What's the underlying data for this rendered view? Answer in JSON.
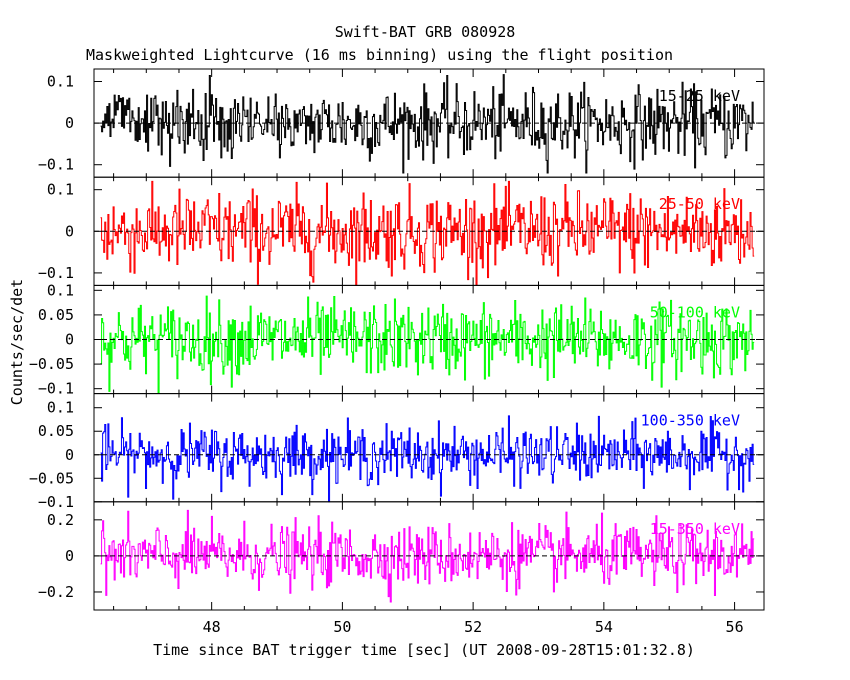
{
  "chart_data": {
    "type": "line",
    "title": "Swift-BAT GRB 080928",
    "subtitle": "Maskweighted Lightcurve (16 ms binning) using the flight position",
    "xlabel": "Time since BAT trigger time [sec] (UT 2008-09-28T15:01:32.8)",
    "ylabel": "Counts/sec/det",
    "xlim": [
      46.2,
      56.45
    ],
    "x_range_data": [
      46.3,
      56.3
    ],
    "bin_width_sec": 0.016,
    "xticks": [
      "48",
      "50",
      "52",
      "54",
      "56"
    ],
    "panels": [
      {
        "name": "15-25 keV",
        "color": "#000000",
        "ylim": [
          -0.13,
          0.13
        ],
        "yticks": [
          0.1,
          0,
          -0.1
        ],
        "ytick_labels": [
          "0.1",
          "0",
          "−0.1"
        ],
        "noise_sigma": 0.042,
        "envelope_range": [
          -0.12,
          0.13
        ]
      },
      {
        "name": "25-50 keV",
        "color": "#ff0000",
        "ylim": [
          -0.13,
          0.13
        ],
        "yticks": [
          0.1,
          0,
          -0.1
        ],
        "ytick_labels": [
          "0.1",
          "0",
          "−0.1"
        ],
        "noise_sigma": 0.048,
        "envelope_range": [
          -0.13,
          0.12
        ]
      },
      {
        "name": "50-100 keV",
        "color": "#00ff00",
        "ylim": [
          -0.11,
          0.11
        ],
        "yticks": [
          0.1,
          0.05,
          0,
          -0.05,
          -0.1
        ],
        "ytick_labels": [
          "0.1",
          "0.05",
          "0",
          "−0.05",
          "−0.1"
        ],
        "noise_sigma": 0.037,
        "envelope_range": [
          -0.11,
          0.11
        ]
      },
      {
        "name": "100-350 keV",
        "color": "#0000ff",
        "ylim": [
          -0.1,
          0.13
        ],
        "yticks": [
          0.1,
          0.05,
          0,
          -0.05,
          -0.1
        ],
        "ytick_labels": [
          "0.1",
          "0.05",
          "0",
          "−0.05",
          "−0.1"
        ],
        "noise_sigma": 0.03,
        "envelope_range": [
          -0.1,
          0.13
        ]
      },
      {
        "name": "15-350 keV",
        "color": "#ff00ff",
        "ylim": [
          -0.3,
          0.3
        ],
        "yticks": [
          0.2,
          0,
          -0.2
        ],
        "ytick_labels": [
          "0.2",
          "0",
          "−0.2"
        ],
        "noise_sigma": 0.085,
        "envelope_range": [
          -0.3,
          0.3
        ]
      }
    ],
    "grid": false,
    "zero_line": "dashed"
  }
}
